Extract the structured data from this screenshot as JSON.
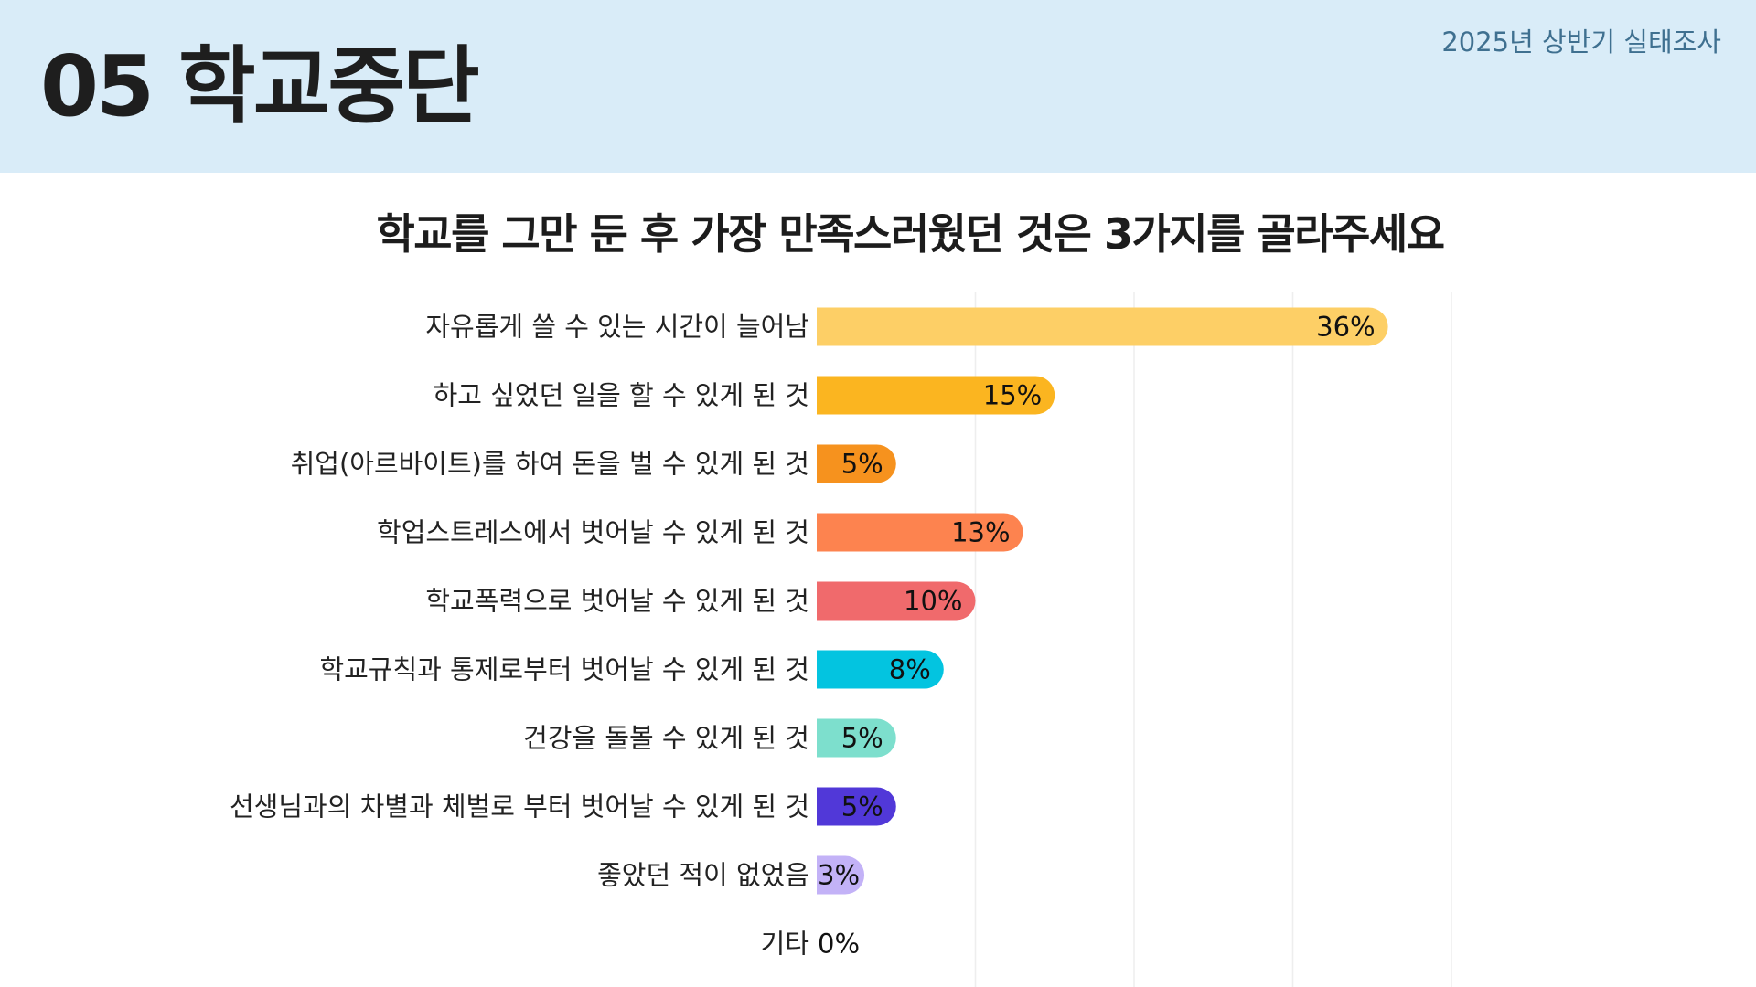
{
  "header": {
    "section_title": "05 학교중단",
    "survey_label": "2025년 상반기 실태조사"
  },
  "question": "학교를 그만 둔 후 가장 만족스러웠던 것은 3가지를 골라주세요",
  "chart_data": {
    "type": "bar",
    "orientation": "horizontal",
    "title": "학교를 그만 둔 후 가장 만족스러웠던 것은 3가지를 골라주세요",
    "xlabel": "",
    "ylabel": "",
    "xlim": [
      0,
      40
    ],
    "grid": true,
    "categories": [
      "자유롭게 쓸 수 있는 시간이 늘어남",
      "하고 싶었던 일을 할 수 있게 된 것",
      "취업(아르바이트)를 하여 돈을 벌 수 있게 된 것",
      "학업스트레스에서 벗어날 수 있게 된 것",
      "학교폭력으로 벗어날 수 있게 된 것",
      "학교규칙과 통제로부터 벗어날 수 있게 된 것",
      "건강을 돌볼 수 있게 된 것",
      "선생님과의 차별과 체벌로 부터 벗어날 수 있게 된 것",
      "좋았던 적이 없었음",
      "기타"
    ],
    "values": [
      36,
      15,
      5,
      13,
      10,
      8,
      5,
      5,
      3,
      0
    ],
    "value_labels": [
      "36%",
      "15%",
      "5%",
      "13%",
      "10%",
      "8%",
      "5%",
      "5%",
      "3%",
      "0%"
    ],
    "colors": [
      "#fdcf66",
      "#fbb520",
      "#f6921e",
      "#fd834f",
      "#f06a6c",
      "#03c4e0",
      "#7ddfcd",
      "#5138d8",
      "#c3b2f7",
      "#cccccc"
    ]
  }
}
